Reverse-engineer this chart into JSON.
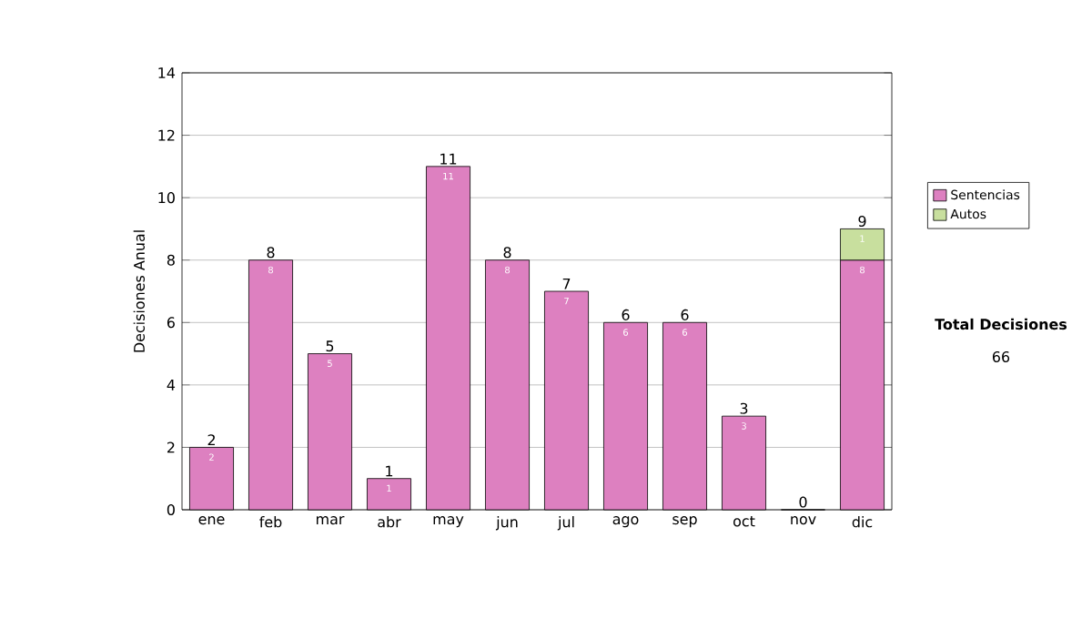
{
  "chart_data": {
    "type": "bar",
    "stacked": true,
    "ylabel": "Decisiones Anual",
    "categories": [
      "ene",
      "feb",
      "mar",
      "abr",
      "may",
      "jun",
      "jul",
      "ago",
      "sep",
      "oct",
      "nov",
      "dic"
    ],
    "series": [
      {
        "name": "Sentencias",
        "color": "#dd80c0",
        "values": [
          2,
          8,
          5,
          1,
          11,
          8,
          7,
          6,
          6,
          3,
          0,
          8
        ],
        "value_labels": [
          "2",
          "8",
          "5",
          "1",
          "11",
          "8",
          "7",
          "6",
          "6",
          "3",
          null,
          "8"
        ]
      },
      {
        "name": "Autos",
        "color": "#c8df9e",
        "values": [
          null,
          null,
          null,
          null,
          null,
          null,
          null,
          null,
          null,
          null,
          null,
          1
        ],
        "value_labels": [
          null,
          null,
          null,
          null,
          null,
          null,
          null,
          null,
          null,
          null,
          null,
          "1"
        ]
      }
    ],
    "totals": [
      "2",
      "8",
      "5",
      "1",
      "11",
      "8",
      "7",
      "6",
      "6",
      "3",
      "0",
      "9"
    ],
    "ylim": [
      0,
      14
    ],
    "yticks": [
      0,
      2,
      4,
      6,
      8,
      10,
      12,
      14
    ],
    "grid": "y",
    "legend": "right",
    "annotations": [
      "**Total Decisiones**",
      "66"
    ]
  }
}
